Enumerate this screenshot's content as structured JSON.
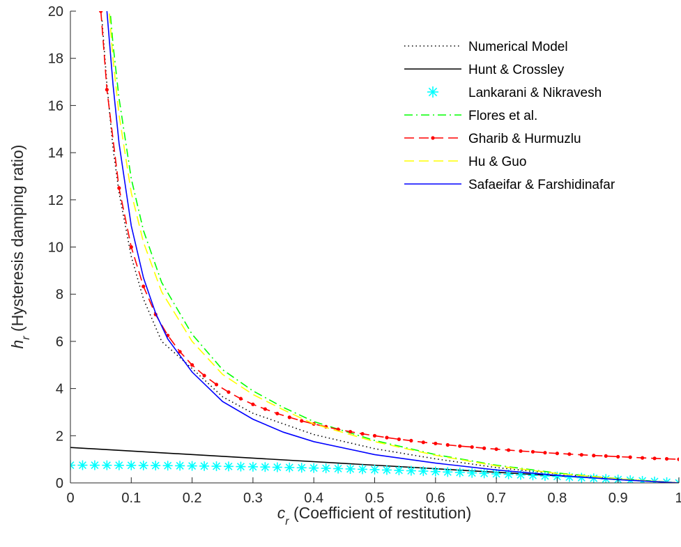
{
  "chart_data": {
    "type": "line",
    "xlabel": {
      "var": "c",
      "sub": "r",
      "text": " (Coefficient of restitution)"
    },
    "ylabel": {
      "var": "h",
      "sub": "r",
      "text": " (Hysteresis damping ratio)"
    },
    "xlim": [
      0,
      1
    ],
    "ylim": [
      0,
      20
    ],
    "xticks": [
      0,
      0.1,
      0.2,
      0.3,
      0.4,
      0.5,
      0.6,
      0.7,
      0.8,
      0.9,
      1
    ],
    "xtick_labels": [
      "0",
      "0.1",
      "0.2",
      "0.3",
      "0.4",
      "0.5",
      "0.6",
      "0.7",
      "0.8",
      "0.9",
      "1"
    ],
    "yticks": [
      0,
      2,
      4,
      6,
      8,
      10,
      12,
      14,
      16,
      18,
      20
    ],
    "ytick_labels": [
      "0",
      "2",
      "4",
      "6",
      "8",
      "10",
      "12",
      "14",
      "16",
      "18",
      "20"
    ],
    "grid": false,
    "legend_position": "top-right",
    "series": [
      {
        "name": "Numerical Model",
        "color": "#000000",
        "style": "dotted",
        "marker": "none",
        "x": [
          0.052,
          0.06,
          0.07,
          0.08,
          0.1,
          0.12,
          0.15,
          0.2,
          0.25,
          0.3,
          0.4,
          0.5,
          0.6,
          0.7,
          0.8,
          0.9,
          1.0
        ],
        "y": [
          19.6,
          16.9,
          14.2,
          12.3,
          9.6,
          7.8,
          6.0,
          4.85,
          3.65,
          2.95,
          2.05,
          1.45,
          1.02,
          0.65,
          0.38,
          0.17,
          0.0
        ]
      },
      {
        "name": "Hunt & Crossley",
        "color": "#000000",
        "style": "solid",
        "marker": "none",
        "x": [
          0,
          1
        ],
        "y": [
          1.5,
          0.0
        ]
      },
      {
        "name": "Lankarani & Nikravesh",
        "color": "#00ffff",
        "style": "none",
        "marker": "asterisk",
        "x": [
          0,
          0.02,
          0.04,
          0.06,
          0.08,
          0.1,
          0.12,
          0.14,
          0.16,
          0.18,
          0.2,
          0.22,
          0.24,
          0.26,
          0.28,
          0.3,
          0.32,
          0.34,
          0.36,
          0.38,
          0.4,
          0.42,
          0.44,
          0.46,
          0.48,
          0.5,
          0.52,
          0.54,
          0.56,
          0.58,
          0.6,
          0.62,
          0.64,
          0.66,
          0.68,
          0.7,
          0.72,
          0.74,
          0.76,
          0.78,
          0.8,
          0.82,
          0.84,
          0.86,
          0.88,
          0.9,
          0.92,
          0.94,
          0.96,
          0.98,
          1.0
        ],
        "y": [
          0.75,
          0.75,
          0.749,
          0.747,
          0.745,
          0.743,
          0.739,
          0.735,
          0.731,
          0.726,
          0.72,
          0.714,
          0.707,
          0.699,
          0.691,
          0.683,
          0.673,
          0.663,
          0.653,
          0.642,
          0.63,
          0.618,
          0.605,
          0.591,
          0.577,
          0.563,
          0.547,
          0.531,
          0.515,
          0.498,
          0.48,
          0.462,
          0.443,
          0.423,
          0.403,
          0.383,
          0.361,
          0.339,
          0.317,
          0.294,
          0.27,
          0.246,
          0.221,
          0.195,
          0.169,
          0.143,
          0.115,
          0.087,
          0.059,
          0.03,
          0.0
        ]
      },
      {
        "name": "Flores et al.",
        "color": "#00ff00",
        "style": "dashdot",
        "marker": "none",
        "x": [
          0.066,
          0.07,
          0.08,
          0.1,
          0.12,
          0.15,
          0.2,
          0.25,
          0.3,
          0.35,
          0.4,
          0.5,
          0.6,
          0.7,
          0.8,
          0.9,
          1.0
        ],
        "y": [
          19.8,
          18.6,
          16.3,
          12.9,
          10.7,
          8.5,
          6.3,
          4.8,
          3.9,
          3.2,
          2.6,
          1.8,
          1.2,
          0.75,
          0.42,
          0.18,
          0.0
        ]
      },
      {
        "name": "Gharib & Hurmuzlu",
        "color": "#ff0000",
        "style": "dashed",
        "marker": "dot",
        "x": [
          0.05,
          0.06,
          0.08,
          0.1,
          0.12,
          0.14,
          0.16,
          0.18,
          0.2,
          0.22,
          0.24,
          0.26,
          0.28,
          0.3,
          0.32,
          0.34,
          0.36,
          0.38,
          0.4,
          0.42,
          0.44,
          0.46,
          0.48,
          0.5,
          0.52,
          0.54,
          0.56,
          0.58,
          0.6,
          0.62,
          0.64,
          0.66,
          0.68,
          0.7,
          0.72,
          0.74,
          0.76,
          0.78,
          0.8,
          0.82,
          0.84,
          0.86,
          0.88,
          0.9,
          0.92,
          0.94,
          0.96,
          0.98,
          1.0
        ],
        "y": [
          20.0,
          16.67,
          12.5,
          10.0,
          8.33,
          7.14,
          6.25,
          5.56,
          5.0,
          4.55,
          4.17,
          3.85,
          3.57,
          3.33,
          3.13,
          2.94,
          2.78,
          2.63,
          2.5,
          2.38,
          2.27,
          2.17,
          2.08,
          2.0,
          1.92,
          1.85,
          1.79,
          1.72,
          1.67,
          1.61,
          1.56,
          1.52,
          1.47,
          1.43,
          1.39,
          1.35,
          1.32,
          1.28,
          1.25,
          1.22,
          1.19,
          1.16,
          1.14,
          1.11,
          1.09,
          1.06,
          1.04,
          1.02,
          1.0
        ]
      },
      {
        "name": "Hu & Guo",
        "color": "#ffff00",
        "style": "dashed",
        "marker": "none",
        "x": [
          0.064,
          0.07,
          0.08,
          0.1,
          0.12,
          0.15,
          0.2,
          0.25,
          0.3,
          0.35,
          0.4,
          0.5,
          0.6,
          0.7,
          0.8,
          0.9,
          1.0
        ],
        "y": [
          19.9,
          18.0,
          15.6,
          12.3,
          10.2,
          8.1,
          6.0,
          4.6,
          3.75,
          3.1,
          2.5,
          1.75,
          1.17,
          0.72,
          0.4,
          0.17,
          0.0
        ]
      },
      {
        "name": "Safaeifar & Farshidinafar",
        "color": "#0000ff",
        "style": "solid",
        "marker": "none",
        "x": [
          0.06,
          0.07,
          0.08,
          0.1,
          0.12,
          0.14,
          0.16,
          0.2,
          0.25,
          0.3,
          0.35,
          0.4,
          0.5,
          0.6,
          0.7,
          0.8,
          0.9,
          1.0
        ],
        "y": [
          20.0,
          16.9,
          14.4,
          10.9,
          8.7,
          7.2,
          6.1,
          4.7,
          3.45,
          2.7,
          2.15,
          1.75,
          1.2,
          0.84,
          0.55,
          0.32,
          0.14,
          0.0
        ]
      }
    ]
  }
}
